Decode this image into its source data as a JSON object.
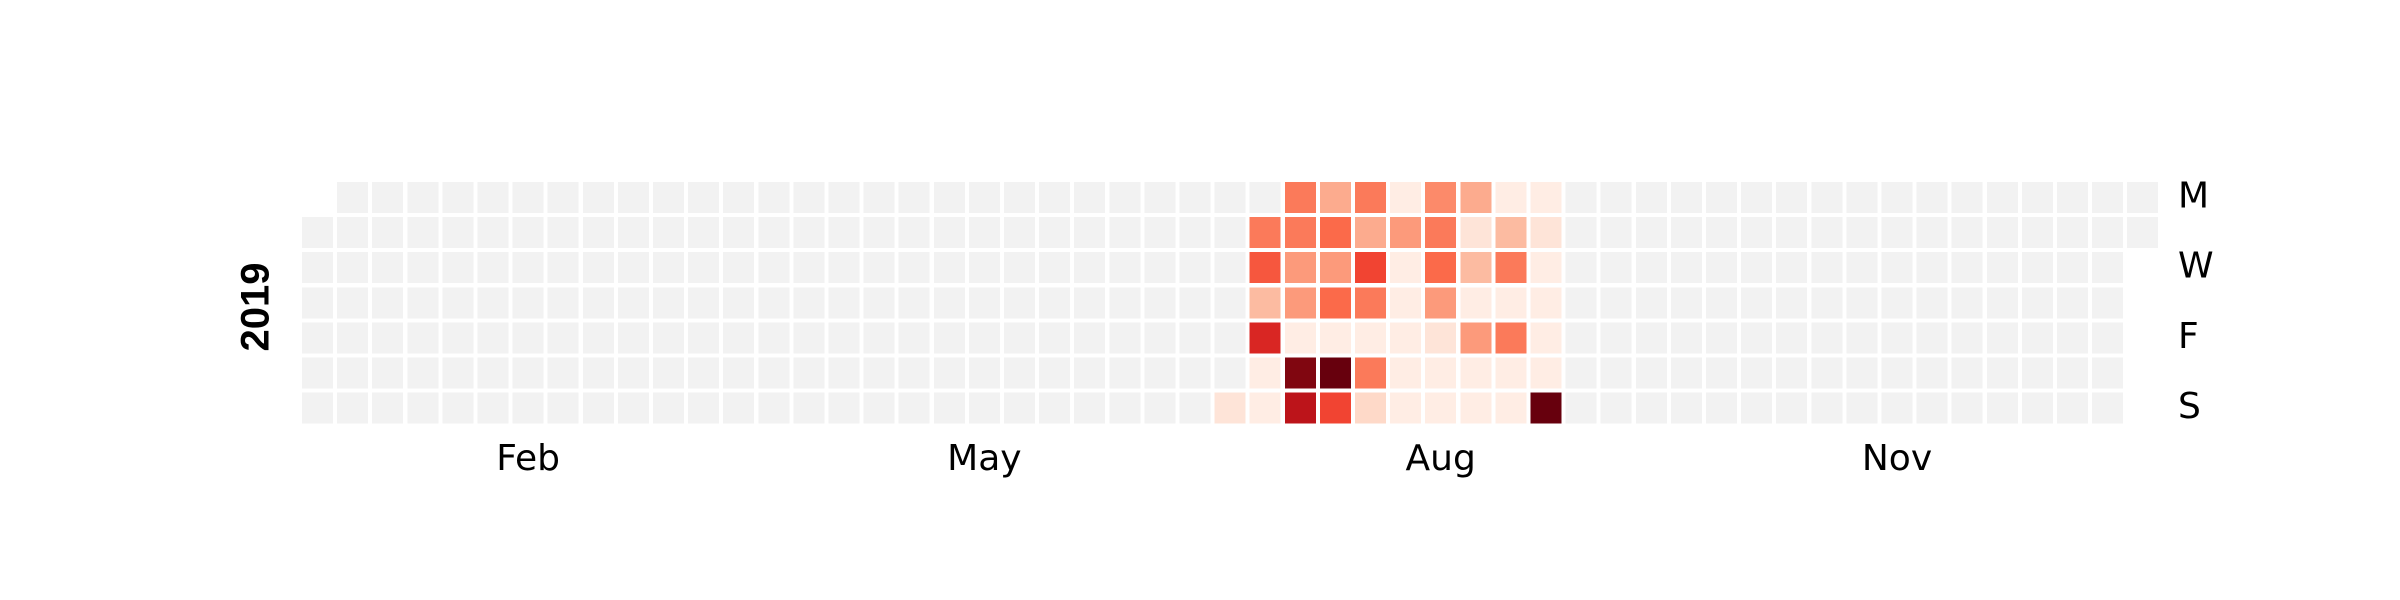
{
  "chart_data": {
    "type": "heatmap",
    "subtype": "calendar",
    "year": "2019",
    "start_date": "2019-01-01",
    "end_date": "2019-12-31",
    "week_starts": "Monday",
    "month_labels": [
      {
        "label": "Feb",
        "month": 2
      },
      {
        "label": "May",
        "month": 5
      },
      {
        "label": "Aug",
        "month": 8
      },
      {
        "label": "Nov",
        "month": 11
      }
    ],
    "day_labels": [
      {
        "label": "M",
        "weekday": 0
      },
      {
        "label": "W",
        "weekday": 2
      },
      {
        "label": "F",
        "weekday": 4
      },
      {
        "label": "S",
        "weekday": 6
      }
    ],
    "colormap": "Reds",
    "empty_color": "#f2f2f2",
    "vmin": 0,
    "vmax": 1,
    "values": {
      "2019-07-07": 0.1,
      "2019-07-09": 0.45,
      "2019-07-10": 0.55,
      "2019-07-11": 0.25,
      "2019-07-12": 0.7,
      "2019-07-13": 0.05,
      "2019-07-14": 0.05,
      "2019-07-15": 0.45,
      "2019-07-16": 0.45,
      "2019-07-17": 0.35,
      "2019-07-18": 0.35,
      "2019-07-19": 0.05,
      "2019-07-20": 0.95,
      "2019-07-21": 0.8,
      "2019-07-22": 0.3,
      "2019-07-23": 0.5,
      "2019-07-24": 0.35,
      "2019-07-25": 0.5,
      "2019-07-26": 0.05,
      "2019-07-27": 1.0,
      "2019-07-28": 0.6,
      "2019-07-29": 0.45,
      "2019-07-30": 0.3,
      "2019-07-31": 0.6,
      "2019-08-01": 0.45,
      "2019-08-02": 0.05,
      "2019-08-03": 0.45,
      "2019-08-04": 0.15,
      "2019-08-05": 0.05,
      "2019-08-06": 0.35,
      "2019-08-07": 0.05,
      "2019-08-08": 0.05,
      "2019-08-09": 0.05,
      "2019-08-10": 0.05,
      "2019-08-11": 0.05,
      "2019-08-12": 0.4,
      "2019-08-13": 0.45,
      "2019-08-14": 0.5,
      "2019-08-15": 0.35,
      "2019-08-16": 0.1,
      "2019-08-17": 0.05,
      "2019-08-18": 0.05,
      "2019-08-19": 0.3,
      "2019-08-20": 0.1,
      "2019-08-21": 0.25,
      "2019-08-22": 0.05,
      "2019-08-23": 0.35,
      "2019-08-24": 0.05,
      "2019-08-25": 0.05,
      "2019-08-26": 0.05,
      "2019-08-27": 0.25,
      "2019-08-28": 0.45,
      "2019-08-29": 0.05,
      "2019-08-30": 0.45,
      "2019-08-31": 0.05,
      "2019-09-01": 0.05,
      "2019-09-02": 0.05,
      "2019-09-03": 0.1,
      "2019-09-04": 0.05,
      "2019-09-05": 0.05,
      "2019-09-06": 0.05,
      "2019-09-07": 0.05,
      "2019-09-08": 1.0
    }
  }
}
